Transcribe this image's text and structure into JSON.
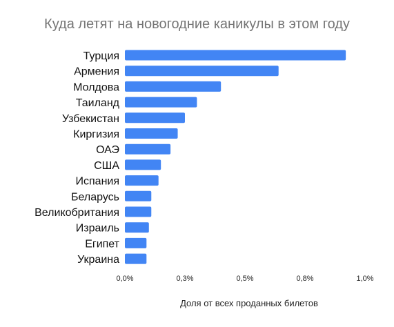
{
  "chart_data": {
    "type": "bar",
    "orientation": "horizontal",
    "title": "Куда летят на новогодние каникулы в этом году",
    "xlabel": "Доля от всех проданных билетов",
    "ylabel": "",
    "categories": [
      "Турция",
      "Армения",
      "Молдова",
      "Таиланд",
      "Узбекистан",
      "Киргизия",
      "ОАЭ",
      "США",
      "Испания",
      "Беларусь",
      "Великобритания",
      "Израиль",
      "Египет",
      "Украина"
    ],
    "values": [
      0.92,
      0.64,
      0.4,
      0.3,
      0.25,
      0.22,
      0.19,
      0.15,
      0.14,
      0.11,
      0.11,
      0.1,
      0.09,
      0.09
    ],
    "xlim": [
      0,
      1.0
    ],
    "x_ticks": [
      0,
      0.25,
      0.5,
      0.75,
      1.0
    ],
    "x_tick_labels": [
      "0,0%",
      "0,3%",
      "0,5%",
      "0,8%",
      "1,0%"
    ],
    "grid": false,
    "bar_color": "#4285f4"
  }
}
